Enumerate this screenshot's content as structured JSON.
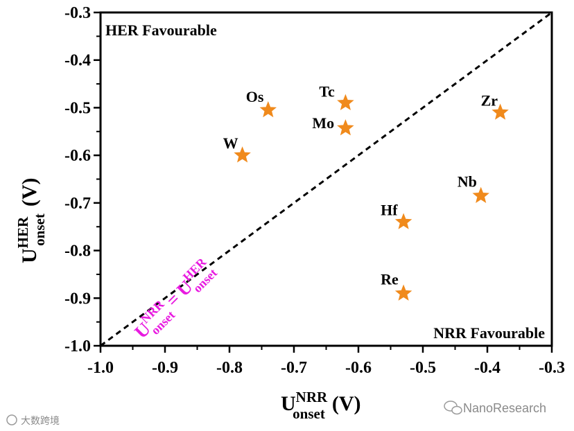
{
  "chart_data": {
    "type": "scatter",
    "xlim": [
      -1.0,
      -0.3
    ],
    "ylim": [
      -1.0,
      -0.3
    ],
    "x_ticks": [
      "-1.0",
      "-0.9",
      "-0.8",
      "-0.7",
      "-0.6",
      "-0.5",
      "-0.4",
      "-0.3"
    ],
    "y_ticks": [
      "-1.0",
      "-0.9",
      "-0.8",
      "-0.7",
      "-0.6",
      "-0.5",
      "-0.4",
      "-0.3"
    ],
    "xlabel": {
      "main": "U",
      "sup": "NRR",
      "sub": "onset",
      "unit": "(V)"
    },
    "ylabel": {
      "main": "U",
      "sup": "HER",
      "sub": "onset",
      "unit": "(V)"
    },
    "points": [
      {
        "label": "Os",
        "x": -0.74,
        "y": -0.505
      },
      {
        "label": "Tc",
        "x": -0.62,
        "y": -0.49
      },
      {
        "label": "Mo",
        "x": -0.62,
        "y": -0.543
      },
      {
        "label": "W",
        "x": -0.78,
        "y": -0.6
      },
      {
        "label": "Zr",
        "x": -0.38,
        "y": -0.51
      },
      {
        "label": "Nb",
        "x": -0.41,
        "y": -0.685
      },
      {
        "label": "Hf",
        "x": -0.53,
        "y": -0.74
      },
      {
        "label": "Re",
        "x": -0.53,
        "y": -0.89
      }
    ],
    "diagonal": {
      "from": [
        -1.0,
        -1.0
      ],
      "to": [
        -0.3,
        -0.3
      ],
      "style": "dashed"
    },
    "regions": {
      "upper_left": "HER Favourable",
      "lower_right": "NRR Favourable"
    },
    "diagonal_label": {
      "left_main": "U",
      "left_sup": "NRR",
      "left_sub": "onset",
      "equals": "=",
      "right_main": "U",
      "right_sup": "HER",
      "right_sub": "onset"
    },
    "marker": "star",
    "marker_color": "#f08a1c",
    "diagonal_label_color": "#e81ae0",
    "grid": false
  },
  "watermarks": {
    "left": "大数跨境",
    "right": "NanoResearch"
  }
}
